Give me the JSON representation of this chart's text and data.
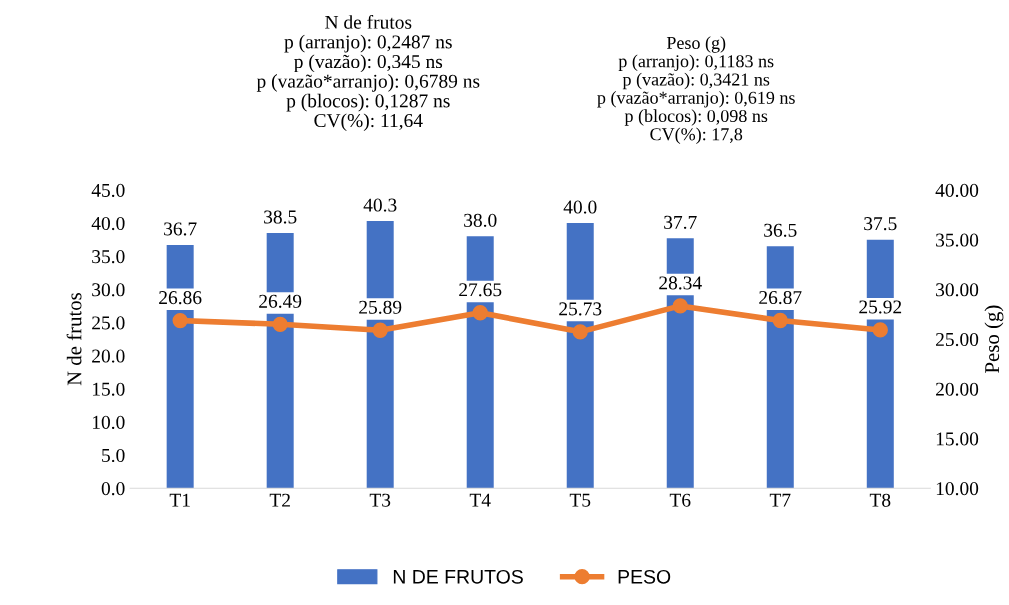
{
  "chart_data": {
    "type": "bar",
    "categories": [
      "T1",
      "T2",
      "T3",
      "T4",
      "T5",
      "T6",
      "T7",
      "T8"
    ],
    "ylabel": "N de frutos",
    "y2label": "Peso (g)",
    "series": [
      {
        "name": "N DE FRUTOS",
        "color": "#4472c4",
        "values": [
          36.7,
          38.5,
          40.3,
          38.0,
          40.0,
          37.7,
          36.5,
          37.5
        ],
        "value_labels": [
          "36.7",
          "38.5",
          "40.3",
          "38.0",
          "40.0",
          "37.7",
          "36.5",
          "37.5"
        ]
      },
      {
        "name": "PESO",
        "type": "line",
        "axis": "y2",
        "color": "#ed7d31",
        "marker": "circle",
        "values": [
          26.86,
          26.49,
          25.89,
          27.65,
          25.73,
          28.34,
          26.87,
          25.92
        ],
        "value_labels": [
          "26.86",
          "26.49",
          "25.89",
          "27.65",
          "25.73",
          "28.34",
          "26.87",
          "25.92"
        ]
      }
    ],
    "ylim": [
      0,
      45
    ],
    "yticks": [
      {
        "value": 0,
        "label": "0.0"
      },
      {
        "value": 5,
        "label": "5.0"
      },
      {
        "value": 10,
        "label": "10.0"
      },
      {
        "value": 15,
        "label": "15.0"
      },
      {
        "value": 20,
        "label": "20.0"
      },
      {
        "value": 25,
        "label": "25.0"
      },
      {
        "value": 30,
        "label": "30.0"
      },
      {
        "value": 35,
        "label": "35.0"
      },
      {
        "value": 40,
        "label": "40.0"
      },
      {
        "value": 45,
        "label": "45.0"
      }
    ],
    "y2lim": [
      10,
      40
    ],
    "y2ticks": [
      {
        "value": 10,
        "label": "10.00"
      },
      {
        "value": 15,
        "label": "15.00"
      },
      {
        "value": 20,
        "label": "20.00"
      },
      {
        "value": 25,
        "label": "25.00"
      },
      {
        "value": 30,
        "label": "30.00"
      },
      {
        "value": 35,
        "label": "35.00"
      },
      {
        "value": 40,
        "label": "40.00"
      }
    ],
    "annotations": [
      "N de frutos\np (arranjo): 0,2487 ns\np (vazão): 0,345 ns\np (vazão*arranjo): 0,6789 ns\np (blocos): 0,1287 ns\nCV(%): 11,64",
      "Peso (g)\np (arranjo): 0,1183 ns\np (vazão): 0,3421 ns\np (vazão*arranjo): 0,619 ns\np (blocos): 0,098 ns\nCV(%): 17,8"
    ],
    "legend": "bottom",
    "grid": false
  }
}
